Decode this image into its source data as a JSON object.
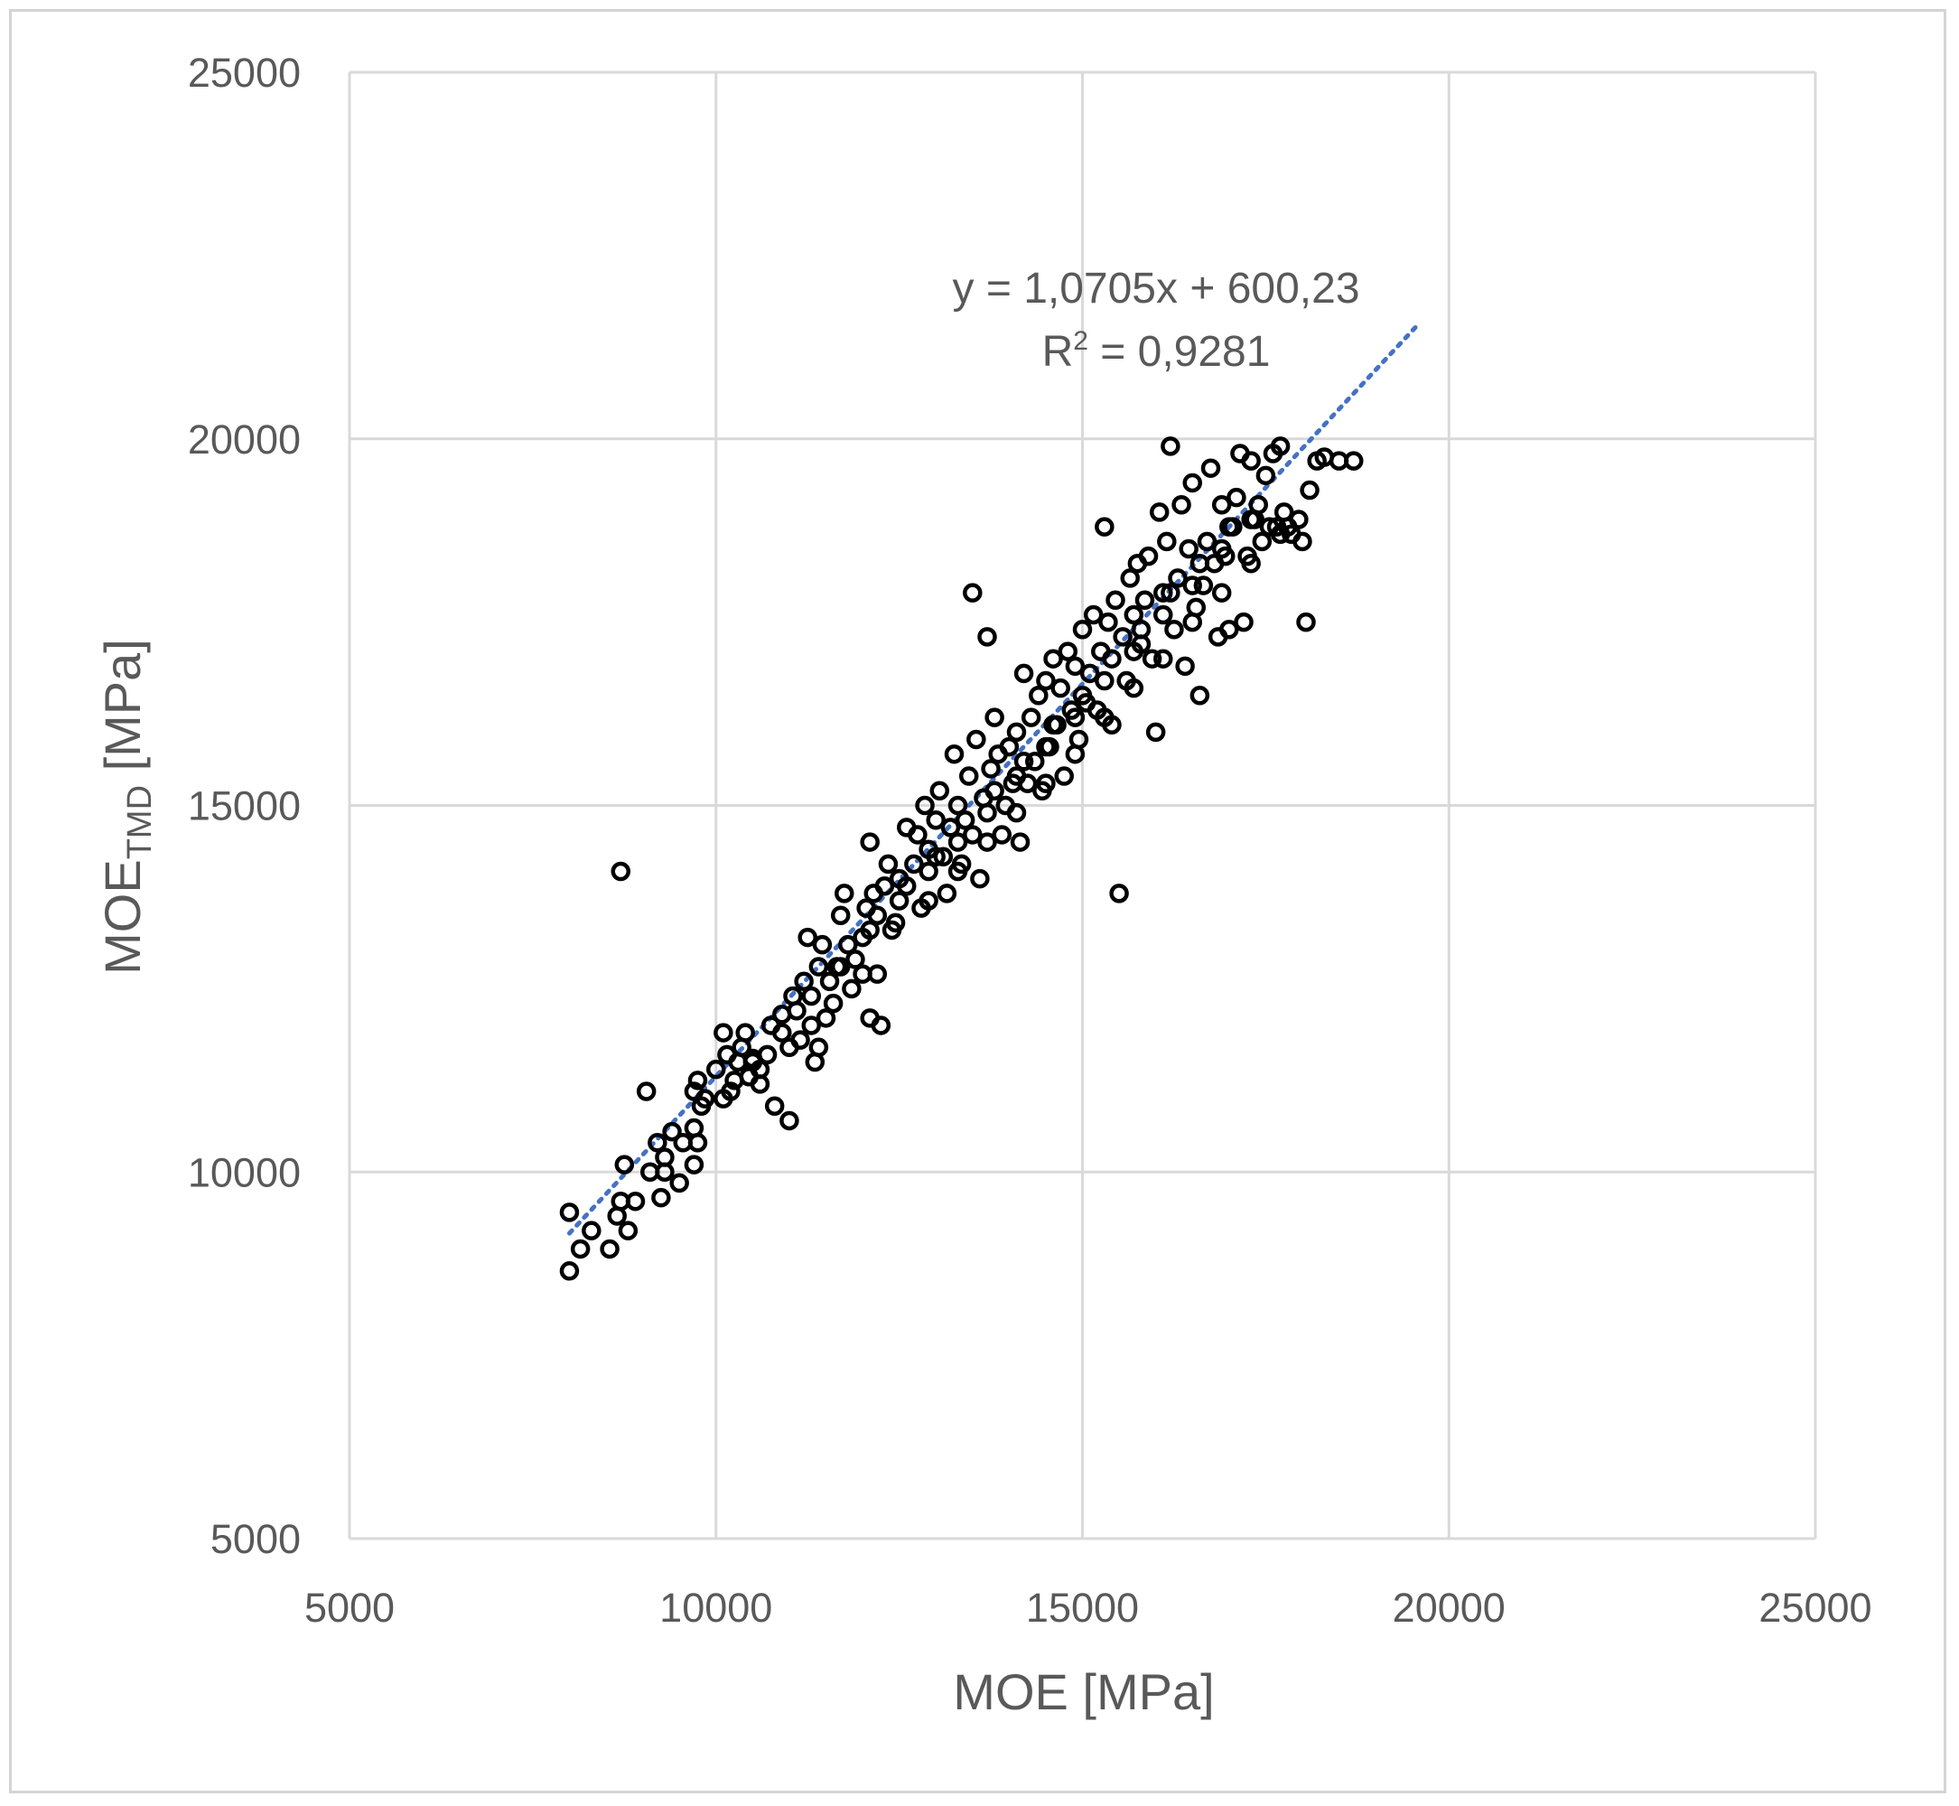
{
  "chart_data": {
    "type": "scatter",
    "title": "",
    "xlabel": "MOE [MPa]",
    "ylabel": {
      "main": "MOE",
      "subscript": "TMD",
      "unit": " [MPa]"
    },
    "xlim": [
      5000,
      25000
    ],
    "ylim": [
      5000,
      25000
    ],
    "x_ticks": [
      5000,
      10000,
      15000,
      20000,
      25000
    ],
    "y_ticks": [
      5000,
      10000,
      15000,
      20000,
      25000
    ],
    "grid": true,
    "marker": "open-circle",
    "colors": {
      "marker": "#000000",
      "trendline": "#4472c4",
      "grid": "#d9d9d9",
      "text": "#595959"
    },
    "trendline": {
      "type": "linear",
      "slope": 1.0705,
      "intercept": 600.23,
      "x_range": [
        8000,
        19600
      ],
      "style": "dotted",
      "equation": "y = 1,0705x + 600,23",
      "r2_label": "R",
      "r2_superscript": "2",
      "r2_value": " = 0,9281"
    },
    "points": [
      [
        8000,
        8650
      ],
      [
        8000,
        9450
      ],
      [
        8150,
        8950
      ],
      [
        8300,
        9200
      ],
      [
        8550,
        8950
      ],
      [
        8650,
        9400
      ],
      [
        8700,
        9600
      ],
      [
        8750,
        10100
      ],
      [
        8800,
        9200
      ],
      [
        8900,
        9600
      ],
      [
        9050,
        11100
      ],
      [
        9100,
        10000
      ],
      [
        9200,
        10400
      ],
      [
        9250,
        9650
      ],
      [
        9300,
        10000
      ],
      [
        9400,
        10550
      ],
      [
        9500,
        9850
      ],
      [
        9550,
        10400
      ],
      [
        9700,
        10100
      ],
      [
        9750,
        10400
      ],
      [
        9700,
        11100
      ],
      [
        9750,
        11250
      ],
      [
        9850,
        11000
      ],
      [
        10000,
        11400
      ],
      [
        10100,
        11900
      ],
      [
        10150,
        11600
      ],
      [
        10250,
        11250
      ],
      [
        10300,
        11500
      ],
      [
        10350,
        11700
      ],
      [
        10400,
        11900
      ],
      [
        10450,
        11300
      ],
      [
        10500,
        11550
      ],
      [
        10600,
        11400
      ],
      [
        10700,
        11600
      ],
      [
        10750,
        12000
      ],
      [
        10800,
        10900
      ],
      [
        10900,
        12150
      ],
      [
        11000,
        11700
      ],
      [
        11050,
        12400
      ],
      [
        11150,
        11800
      ],
      [
        11200,
        12600
      ],
      [
        11250,
        13200
      ],
      [
        11300,
        12000
      ],
      [
        11350,
        11500
      ],
      [
        11400,
        12800
      ],
      [
        11450,
        13100
      ],
      [
        11500,
        12100
      ],
      [
        11550,
        12600
      ],
      [
        11650,
        12800
      ],
      [
        11700,
        13500
      ],
      [
        11750,
        13800
      ],
      [
        11850,
        12500
      ],
      [
        11900,
        12900
      ],
      [
        12000,
        13200
      ],
      [
        12050,
        13600
      ],
      [
        12100,
        14500
      ],
      [
        12150,
        13800
      ],
      [
        12200,
        12700
      ],
      [
        12250,
        12000
      ],
      [
        12300,
        13900
      ],
      [
        12350,
        14200
      ],
      [
        12450,
        13400
      ],
      [
        12500,
        14000
      ],
      [
        12600,
        14700
      ],
      [
        12700,
        14200
      ],
      [
        12750,
        14600
      ],
      [
        12800,
        13600
      ],
      [
        12850,
        15000
      ],
      [
        12900,
        14400
      ],
      [
        13000,
        14800
      ],
      [
        13050,
        15200
      ],
      [
        13100,
        14300
      ],
      [
        13150,
        13800
      ],
      [
        13200,
        14700
      ],
      [
        13250,
        15700
      ],
      [
        13300,
        15000
      ],
      [
        13350,
        14200
      ],
      [
        13450,
        15400
      ],
      [
        13500,
        14600
      ],
      [
        13550,
        15900
      ],
      [
        13600,
        14000
      ],
      [
        13650,
        15100
      ],
      [
        13700,
        17300
      ],
      [
        13750,
        15500
      ],
      [
        13800,
        16200
      ],
      [
        13850,
        15700
      ],
      [
        13900,
        14600
      ],
      [
        13950,
        15000
      ],
      [
        14000,
        15800
      ],
      [
        14050,
        15300
      ],
      [
        14100,
        16000
      ],
      [
        14150,
        14500
      ],
      [
        14200,
        16800
      ],
      [
        14250,
        15300
      ],
      [
        14300,
        16200
      ],
      [
        14350,
        15600
      ],
      [
        14400,
        16500
      ],
      [
        14450,
        15200
      ],
      [
        14500,
        16700
      ],
      [
        14550,
        15800
      ],
      [
        14600,
        17000
      ],
      [
        14650,
        16100
      ],
      [
        14700,
        16600
      ],
      [
        14750,
        15400
      ],
      [
        14800,
        17100
      ],
      [
        14850,
        16300
      ],
      [
        14900,
        16900
      ],
      [
        14950,
        15900
      ],
      [
        15000,
        17400
      ],
      [
        15050,
        16400
      ],
      [
        15100,
        16800
      ],
      [
        15150,
        17600
      ],
      [
        15200,
        16300
      ],
      [
        15250,
        17100
      ],
      [
        15300,
        18800
      ],
      [
        15350,
        17500
      ],
      [
        15400,
        16100
      ],
      [
        15450,
        17800
      ],
      [
        15500,
        13800
      ],
      [
        15550,
        17300
      ],
      [
        15600,
        16700
      ],
      [
        15650,
        18100
      ],
      [
        15700,
        17600
      ],
      [
        15750,
        18300
      ],
      [
        15800,
        17200
      ],
      [
        15850,
        17800
      ],
      [
        15900,
        18400
      ],
      [
        15950,
        17000
      ],
      [
        16000,
        16000
      ],
      [
        16050,
        19000
      ],
      [
        16100,
        17900
      ],
      [
        16150,
        18600
      ],
      [
        16200,
        19900
      ],
      [
        16250,
        17400
      ],
      [
        16300,
        18100
      ],
      [
        16350,
        19100
      ],
      [
        16400,
        16900
      ],
      [
        16450,
        18500
      ],
      [
        16500,
        19400
      ],
      [
        16550,
        17700
      ],
      [
        16600,
        16500
      ],
      [
        16650,
        18000
      ],
      [
        16700,
        18600
      ],
      [
        16750,
        19600
      ],
      [
        16800,
        18300
      ],
      [
        16850,
        17300
      ],
      [
        16900,
        19100
      ],
      [
        16950,
        18400
      ],
      [
        17000,
        17400
      ],
      [
        17050,
        18800
      ],
      [
        17100,
        19200
      ],
      [
        17150,
        19800
      ],
      [
        17200,
        17500
      ],
      [
        17250,
        18400
      ],
      [
        17300,
        19700
      ],
      [
        17350,
        18900
      ],
      [
        17400,
        19100
      ],
      [
        17450,
        18600
      ],
      [
        17500,
        19500
      ],
      [
        17550,
        18800
      ],
      [
        17600,
        19800
      ],
      [
        17650,
        18800
      ],
      [
        17700,
        19900
      ],
      [
        17750,
        19000
      ],
      [
        17800,
        18800
      ],
      [
        17850,
        18700
      ],
      [
        17950,
        18900
      ],
      [
        18000,
        18600
      ],
      [
        18050,
        17500
      ],
      [
        18100,
        19300
      ],
      [
        18200,
        19700
      ],
      [
        18300,
        19750
      ],
      [
        18500,
        19700
      ],
      [
        18700,
        19700
      ],
      [
        13500,
        17900
      ],
      [
        11000,
        10700
      ],
      [
        11400,
        11700
      ],
      [
        12100,
        12100
      ],
      [
        8700,
        14100
      ],
      [
        9800,
        10900
      ],
      [
        10200,
        11100
      ],
      [
        10600,
        11200
      ],
      [
        11100,
        12200
      ],
      [
        11600,
        12300
      ],
      [
        12000,
        12700
      ],
      [
        12400,
        13300
      ],
      [
        12900,
        13700
      ],
      [
        13300,
        14100
      ],
      [
        13700,
        14500
      ],
      [
        14100,
        14900
      ],
      [
        14500,
        15300
      ],
      [
        14900,
        15700
      ],
      [
        15300,
        16200
      ],
      [
        15700,
        16600
      ],
      [
        16100,
        17000
      ],
      [
        16500,
        17500
      ],
      [
        16900,
        17900
      ],
      [
        17300,
        18300
      ],
      [
        17700,
        18700
      ],
      [
        10900,
        11900
      ],
      [
        11300,
        12400
      ],
      [
        11700,
        12800
      ],
      [
        12100,
        13300
      ],
      [
        12500,
        13700
      ],
      [
        12900,
        14100
      ],
      [
        13300,
        14500
      ],
      [
        13700,
        14900
      ],
      [
        14100,
        15400
      ],
      [
        14500,
        15800
      ],
      [
        14900,
        16200
      ],
      [
        15300,
        16700
      ],
      [
        15700,
        17100
      ],
      [
        16100,
        17600
      ],
      [
        16500,
        18000
      ],
      [
        16900,
        18500
      ],
      [
        17300,
        18900
      ],
      [
        9300,
        10200
      ],
      [
        9700,
        10600
      ],
      [
        10100,
        11000
      ],
      [
        10500,
        11500
      ],
      [
        11800,
        13100
      ],
      [
        12200,
        13500
      ],
      [
        12600,
        13900
      ],
      [
        13000,
        14300
      ],
      [
        13400,
        14800
      ],
      [
        13800,
        15200
      ],
      [
        14200,
        15600
      ],
      [
        14600,
        16100
      ],
      [
        15000,
        16500
      ],
      [
        15400,
        17000
      ],
      [
        15800,
        17400
      ],
      [
        16200,
        17900
      ],
      [
        16600,
        18300
      ],
      [
        17000,
        18800
      ]
    ]
  }
}
